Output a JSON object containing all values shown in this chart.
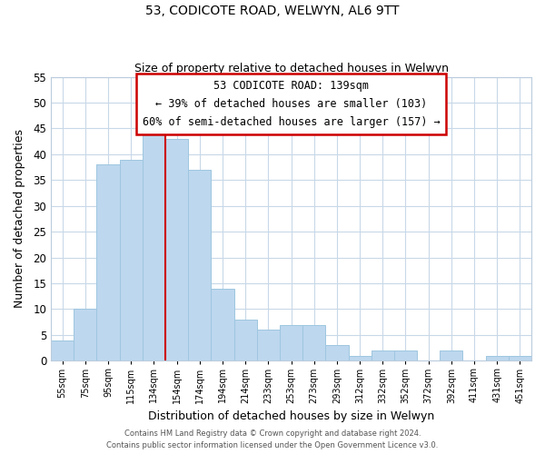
{
  "title": "53, CODICOTE ROAD, WELWYN, AL6 9TT",
  "subtitle": "Size of property relative to detached houses in Welwyn",
  "xlabel": "Distribution of detached houses by size in Welwyn",
  "ylabel": "Number of detached properties",
  "bar_labels": [
    "55sqm",
    "75sqm",
    "95sqm",
    "115sqm",
    "134sqm",
    "154sqm",
    "174sqm",
    "194sqm",
    "214sqm",
    "233sqm",
    "253sqm",
    "273sqm",
    "293sqm",
    "312sqm",
    "332sqm",
    "352sqm",
    "372sqm",
    "392sqm",
    "411sqm",
    "431sqm",
    "451sqm"
  ],
  "bar_heights": [
    4,
    10,
    38,
    39,
    46,
    43,
    37,
    14,
    8,
    6,
    7,
    7,
    3,
    1,
    2,
    2,
    0,
    2,
    0,
    1,
    1
  ],
  "bar_color": "#bdd7ee",
  "bar_edge_color": "#9ec6e0",
  "vline_color": "#cc0000",
  "ylim": [
    0,
    55
  ],
  "yticks": [
    0,
    5,
    10,
    15,
    20,
    25,
    30,
    35,
    40,
    45,
    50,
    55
  ],
  "annotation_title": "53 CODICOTE ROAD: 139sqm",
  "annotation_line1": "← 39% of detached houses are smaller (103)",
  "annotation_line2": "60% of semi-detached houses are larger (157) →",
  "annotation_box_color": "white",
  "annotation_box_edge": "#cc0000",
  "grid_color": "#c8d8e8",
  "footer1": "Contains HM Land Registry data © Crown copyright and database right 2024.",
  "footer2": "Contains public sector information licensed under the Open Government Licence v3.0."
}
